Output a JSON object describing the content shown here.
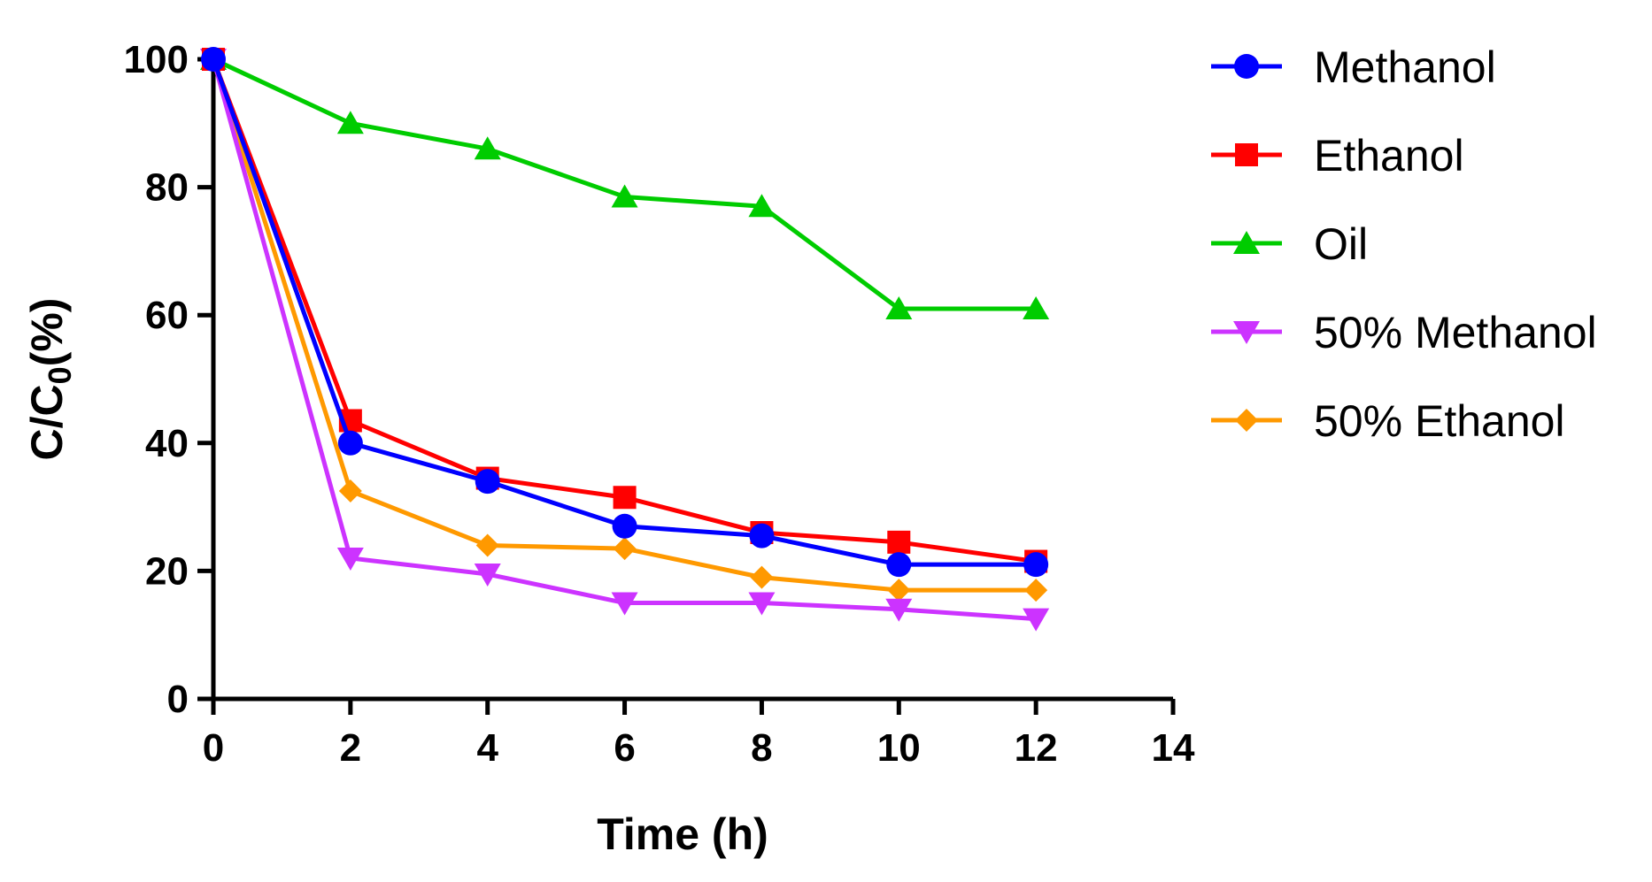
{
  "chart_data": {
    "type": "line",
    "title": "",
    "xlabel": "Time (h)",
    "ylabel": {
      "main": "C/C",
      "sub": "0",
      "suffix": "(%)"
    },
    "xlim": [
      0,
      14
    ],
    "ylim": [
      0,
      100
    ],
    "x_ticks": [
      0,
      2,
      4,
      6,
      8,
      10,
      12,
      14
    ],
    "y_ticks": [
      0,
      20,
      40,
      60,
      80,
      100
    ],
    "grid": false,
    "legend_position": "right",
    "x": [
      0,
      2,
      4,
      6,
      8,
      10,
      12
    ],
    "series": [
      {
        "name": "Methanol",
        "color": "#0000ff",
        "marker": "circle",
        "values": [
          100,
          40,
          34,
          27,
          25.5,
          21,
          21
        ]
      },
      {
        "name": "Ethanol",
        "color": "#ff0000",
        "marker": "square",
        "values": [
          100,
          43.5,
          34.5,
          31.5,
          26,
          24.5,
          21.5
        ]
      },
      {
        "name": "Oil",
        "color": "#00cc00",
        "marker": "triangle-up",
        "values": [
          100,
          90,
          86,
          78.5,
          77,
          61,
          61
        ]
      },
      {
        "name": "50% Methanol",
        "color": "#cc33ff",
        "marker": "triangle-down",
        "values": [
          100,
          22,
          19.5,
          15,
          15,
          14,
          12.5
        ]
      },
      {
        "name": "50% Ethanol",
        "color": "#ff9900",
        "marker": "diamond",
        "values": [
          100,
          32.5,
          24,
          23.5,
          19,
          17,
          17
        ]
      }
    ]
  }
}
